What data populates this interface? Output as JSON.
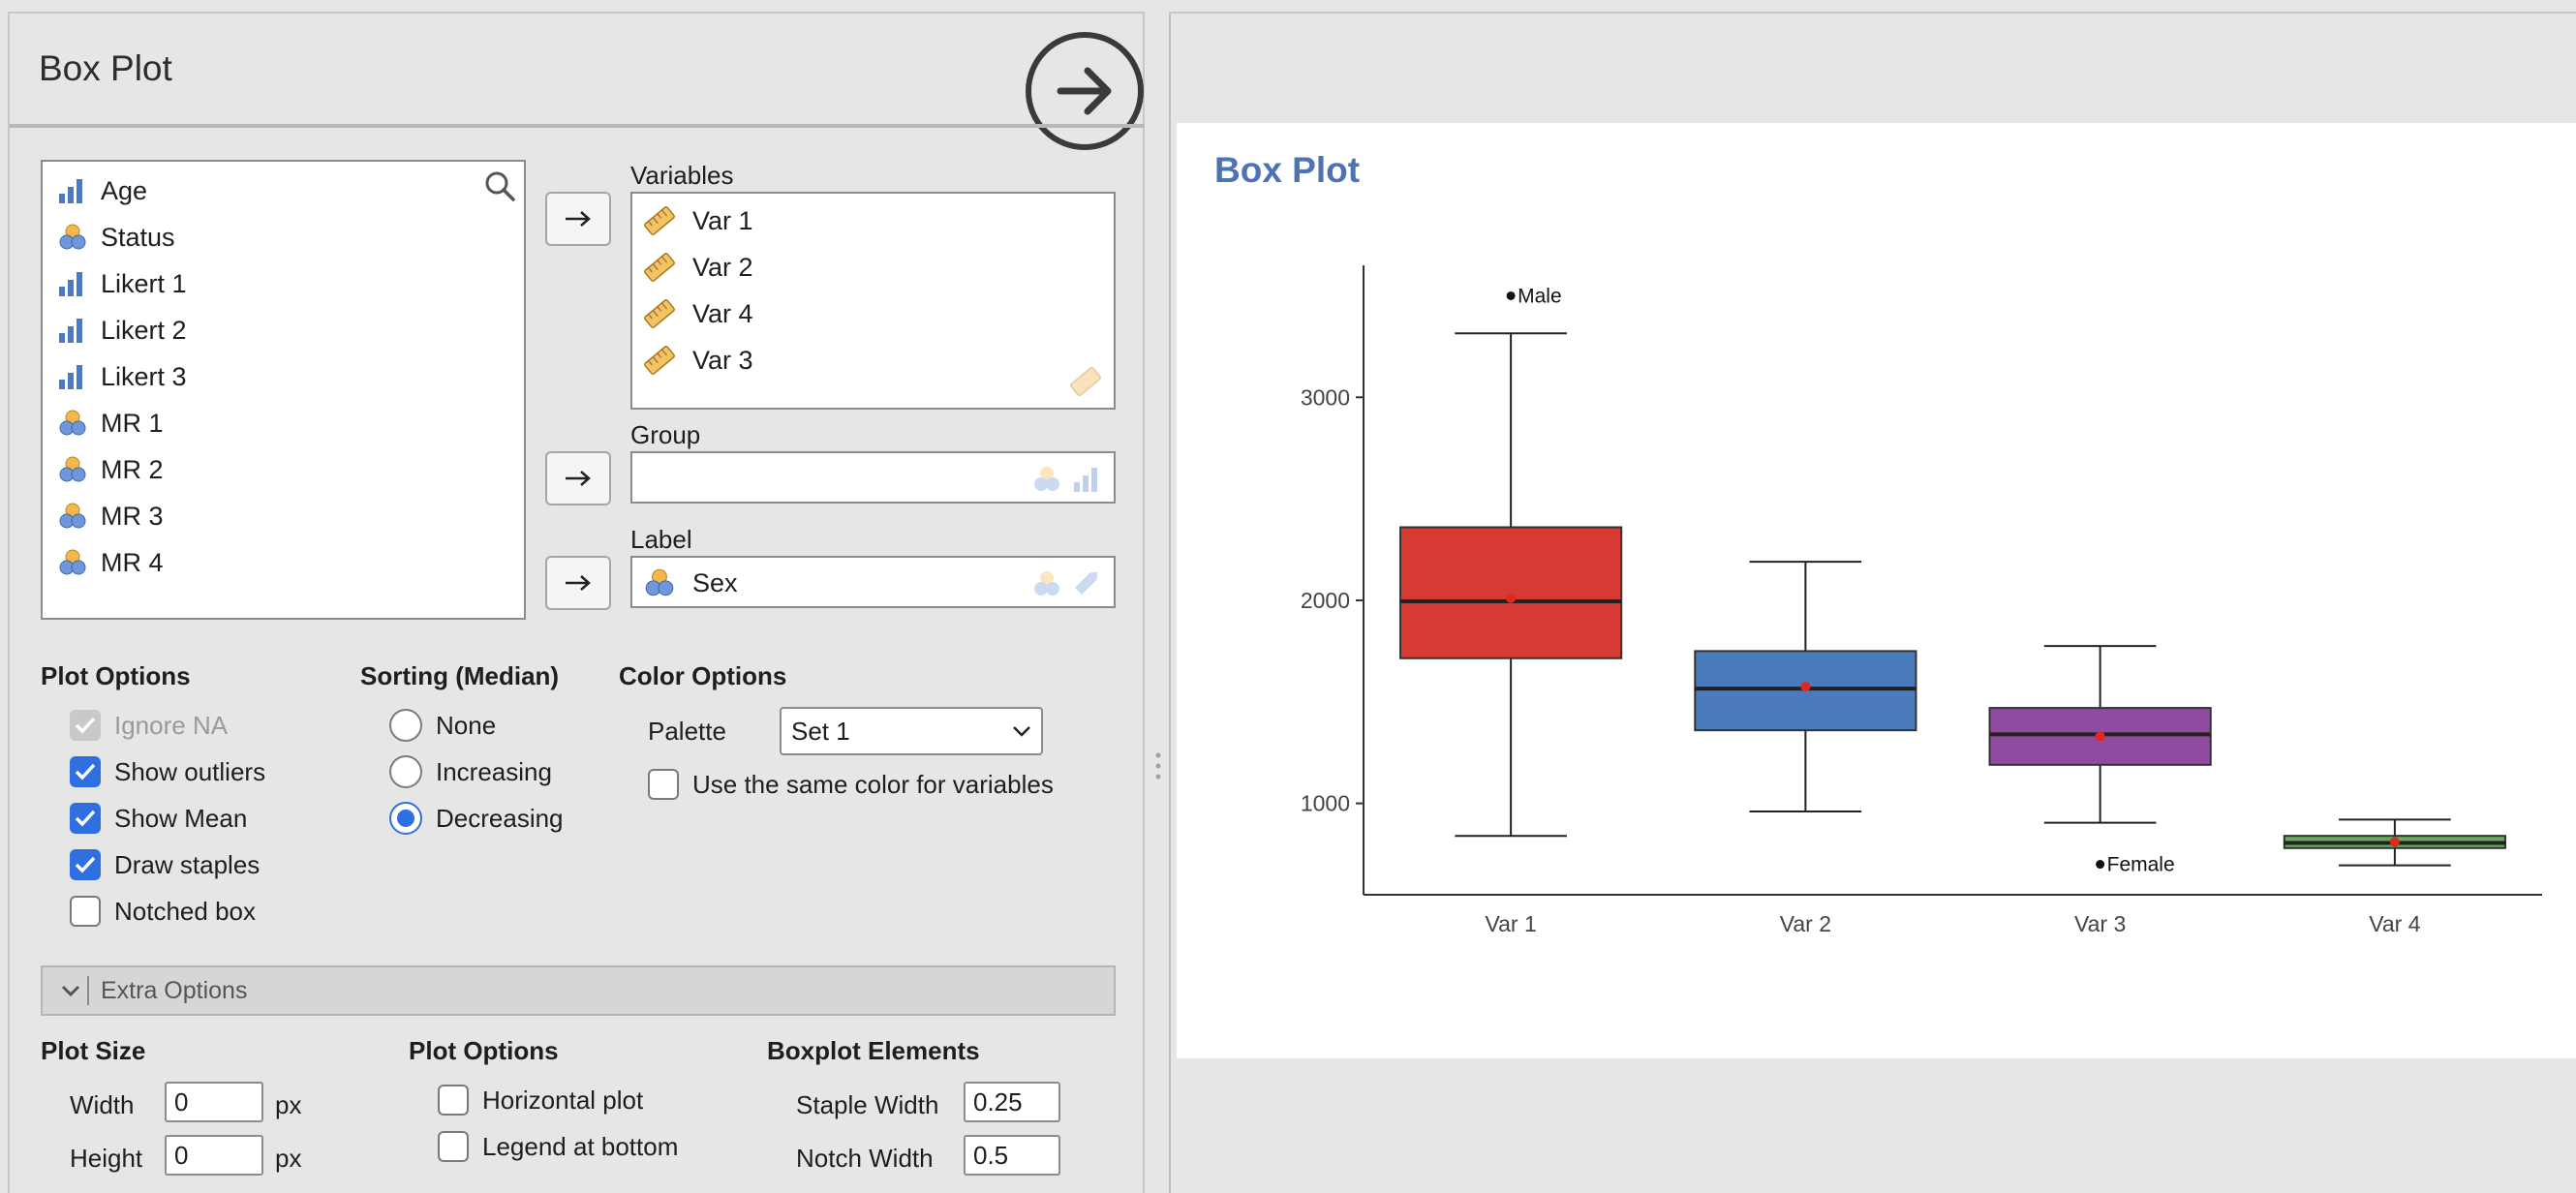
{
  "options_panel": {
    "title": "Box Plot",
    "source_variables": [
      {
        "label": "Age",
        "icon": "continuous-icon"
      },
      {
        "label": "Status",
        "icon": "nominal-icon"
      },
      {
        "label": "Likert 1",
        "icon": "continuous-icon"
      },
      {
        "label": "Likert 2",
        "icon": "continuous-icon"
      },
      {
        "label": "Likert 3",
        "icon": "continuous-icon"
      },
      {
        "label": "MR 1",
        "icon": "nominal-icon"
      },
      {
        "label": "MR 2",
        "icon": "nominal-icon"
      },
      {
        "label": "MR 3",
        "icon": "nominal-icon"
      },
      {
        "label": "MR 4",
        "icon": "nominal-icon"
      }
    ],
    "variables_label": "Variables",
    "variables": [
      "Var 1",
      "Var 2",
      "Var 4",
      "Var 3"
    ],
    "group_label": "Group",
    "group_value": "",
    "label_label": "Label",
    "label_value": "Sex",
    "plot_options": {
      "heading": "Plot Options",
      "ignore_na": {
        "label": "Ignore NA",
        "checked": true,
        "disabled": true
      },
      "show_outliers": {
        "label": "Show outliers",
        "checked": true
      },
      "show_mean": {
        "label": "Show Mean",
        "checked": true
      },
      "draw_staples": {
        "label": "Draw staples",
        "checked": true
      },
      "notched_box": {
        "label": "Notched box",
        "checked": false
      }
    },
    "sorting": {
      "heading": "Sorting (Median)",
      "options": [
        "None",
        "Increasing",
        "Decreasing"
      ],
      "selected": "Decreasing"
    },
    "color_options": {
      "heading": "Color Options",
      "palette_label": "Palette",
      "palette_value": "Set 1",
      "same_color_label": "Use the same color for variables",
      "same_color_checked": false
    },
    "extra_options": {
      "label": "Extra Options",
      "plot_size": {
        "heading": "Plot Size",
        "width_label": "Width",
        "width_value": "0",
        "height_label": "Height",
        "height_value": "0",
        "unit": "px"
      },
      "plot_options2": {
        "heading": "Plot Options",
        "horizontal_label": "Horizontal plot",
        "horizontal_checked": false,
        "legend_bottom_label": "Legend at bottom",
        "legend_bottom_checked": false
      },
      "boxplot_elements": {
        "heading": "Boxplot Elements",
        "staple_width_label": "Staple Width",
        "staple_width_value": "0.25",
        "notch_width_label": "Notch Width",
        "notch_width_value": "0.5"
      }
    }
  },
  "results_panel": {
    "title": "Box Plot"
  },
  "chart_data": {
    "type": "box",
    "categories": [
      "Var 1",
      "Var 2",
      "Var 3",
      "Var 4"
    ],
    "colors": [
      "#d73a33",
      "#4a7bbd",
      "#8e4ba0",
      "#67a85c"
    ],
    "boxes": [
      {
        "lower_whisker": 840,
        "q1": 1715,
        "median": 1995,
        "q3": 2360,
        "upper_whisker": 3315,
        "mean": 2010
      },
      {
        "lower_whisker": 960,
        "q1": 1360,
        "median": 1565,
        "q3": 1750,
        "upper_whisker": 2190,
        "mean": 1575
      },
      {
        "lower_whisker": 905,
        "q1": 1190,
        "median": 1340,
        "q3": 1470,
        "upper_whisker": 1775,
        "mean": 1330
      },
      {
        "lower_whisker": 695,
        "q1": 780,
        "median": 805,
        "q3": 840,
        "upper_whisker": 920,
        "mean": 810
      }
    ],
    "outliers": [
      {
        "category": "Var 1",
        "value": 3500,
        "label": "Male"
      },
      {
        "category": "Var 3",
        "value": 700,
        "label": "Female"
      }
    ],
    "yticks": [
      1000,
      2000,
      3000
    ],
    "ylim": [
      550,
      3650
    ],
    "title": "Box Plot",
    "xlabel": "",
    "ylabel": ""
  }
}
